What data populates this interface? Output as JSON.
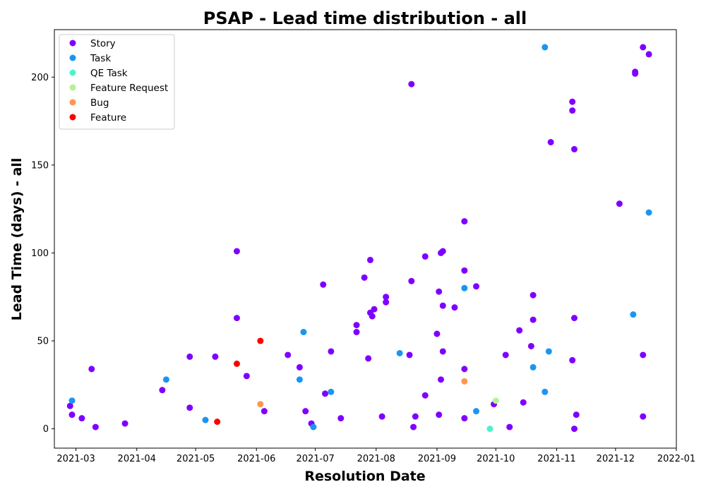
{
  "chart_data": {
    "type": "scatter",
    "title": "PSAP - Lead time distribution - all",
    "xlabel": "Resolution Date",
    "ylabel": "Lead Time (days) - all",
    "x_ticks": [
      "2021-03",
      "2021-04",
      "2021-05",
      "2021-06",
      "2021-07",
      "2021-08",
      "2021-09",
      "2021-10",
      "2021-11",
      "2021-12",
      "2022-01"
    ],
    "y_ticks": [
      0,
      50,
      100,
      150,
      200
    ],
    "xlim": [
      "2021-02-18",
      "2022-01-01"
    ],
    "ylim": [
      -11,
      227
    ],
    "grid": false,
    "legend_position": "top-left",
    "series": [
      {
        "name": "Story",
        "color": "#7f00ff",
        "points": [
          {
            "x": "2021-02-26",
            "y": 13
          },
          {
            "x": "2021-02-27",
            "y": 8
          },
          {
            "x": "2021-03-04",
            "y": 6
          },
          {
            "x": "2021-03-09",
            "y": 34
          },
          {
            "x": "2021-03-11",
            "y": 1
          },
          {
            "x": "2021-03-26",
            "y": 3
          },
          {
            "x": "2021-04-14",
            "y": 22
          },
          {
            "x": "2021-04-28",
            "y": 12
          },
          {
            "x": "2021-04-28",
            "y": 41
          },
          {
            "x": "2021-05-11",
            "y": 41
          },
          {
            "x": "2021-05-22",
            "y": 101
          },
          {
            "x": "2021-05-22",
            "y": 63
          },
          {
            "x": "2021-05-27",
            "y": 30
          },
          {
            "x": "2021-06-05",
            "y": 10
          },
          {
            "x": "2021-06-17",
            "y": 42
          },
          {
            "x": "2021-06-23",
            "y": 35
          },
          {
            "x": "2021-06-26",
            "y": 10
          },
          {
            "x": "2021-06-29",
            "y": 3
          },
          {
            "x": "2021-07-05",
            "y": 82
          },
          {
            "x": "2021-07-06",
            "y": 20
          },
          {
            "x": "2021-07-09",
            "y": 44
          },
          {
            "x": "2021-07-14",
            "y": 6
          },
          {
            "x": "2021-07-22",
            "y": 59
          },
          {
            "x": "2021-07-22",
            "y": 55
          },
          {
            "x": "2021-07-26",
            "y": 86
          },
          {
            "x": "2021-07-28",
            "y": 40
          },
          {
            "x": "2021-07-29",
            "y": 96
          },
          {
            "x": "2021-07-29",
            "y": 66
          },
          {
            "x": "2021-07-30",
            "y": 64
          },
          {
            "x": "2021-07-31",
            "y": 68
          },
          {
            "x": "2021-08-04",
            "y": 7
          },
          {
            "x": "2021-08-06",
            "y": 75
          },
          {
            "x": "2021-08-06",
            "y": 72
          },
          {
            "x": "2021-08-18",
            "y": 42
          },
          {
            "x": "2021-08-19",
            "y": 196
          },
          {
            "x": "2021-08-19",
            "y": 84
          },
          {
            "x": "2021-08-20",
            "y": 1
          },
          {
            "x": "2021-08-21",
            "y": 7
          },
          {
            "x": "2021-08-26",
            "y": 98
          },
          {
            "x": "2021-08-26",
            "y": 19
          },
          {
            "x": "2021-09-01",
            "y": 54
          },
          {
            "x": "2021-09-02",
            "y": 78
          },
          {
            "x": "2021-09-02",
            "y": 8
          },
          {
            "x": "2021-09-03",
            "y": 100
          },
          {
            "x": "2021-09-04",
            "y": 101
          },
          {
            "x": "2021-09-03",
            "y": 28
          },
          {
            "x": "2021-09-04",
            "y": 70
          },
          {
            "x": "2021-09-04",
            "y": 44
          },
          {
            "x": "2021-09-10",
            "y": 69
          },
          {
            "x": "2021-09-15",
            "y": 118
          },
          {
            "x": "2021-09-15",
            "y": 90
          },
          {
            "x": "2021-09-15",
            "y": 34
          },
          {
            "x": "2021-09-15",
            "y": 6
          },
          {
            "x": "2021-09-21",
            "y": 81
          },
          {
            "x": "2021-09-30",
            "y": 14
          },
          {
            "x": "2021-10-06",
            "y": 42
          },
          {
            "x": "2021-10-08",
            "y": 1
          },
          {
            "x": "2021-10-13",
            "y": 56
          },
          {
            "x": "2021-10-15",
            "y": 15
          },
          {
            "x": "2021-10-19",
            "y": 47
          },
          {
            "x": "2021-10-20",
            "y": 76
          },
          {
            "x": "2021-10-20",
            "y": 62
          },
          {
            "x": "2021-10-29",
            "y": 163
          },
          {
            "x": "2021-11-09",
            "y": 39
          },
          {
            "x": "2021-11-09",
            "y": 186
          },
          {
            "x": "2021-11-09",
            "y": 181
          },
          {
            "x": "2021-11-10",
            "y": 159
          },
          {
            "x": "2021-11-10",
            "y": 63
          },
          {
            "x": "2021-11-11",
            "y": 8
          },
          {
            "x": "2021-11-10",
            "y": 0
          },
          {
            "x": "2021-12-03",
            "y": 128
          },
          {
            "x": "2021-12-11",
            "y": 203
          },
          {
            "x": "2021-12-11",
            "y": 202
          },
          {
            "x": "2021-12-15",
            "y": 217
          },
          {
            "x": "2021-12-15",
            "y": 42
          },
          {
            "x": "2021-12-15",
            "y": 7
          },
          {
            "x": "2021-12-18",
            "y": 213
          }
        ]
      },
      {
        "name": "Task",
        "color": "#1996f3",
        "points": [
          {
            "x": "2021-02-27",
            "y": 16
          },
          {
            "x": "2021-04-16",
            "y": 28
          },
          {
            "x": "2021-05-06",
            "y": 5
          },
          {
            "x": "2021-06-23",
            "y": 28
          },
          {
            "x": "2021-06-25",
            "y": 55
          },
          {
            "x": "2021-06-30",
            "y": 1
          },
          {
            "x": "2021-07-09",
            "y": 21
          },
          {
            "x": "2021-08-13",
            "y": 43
          },
          {
            "x": "2021-09-15",
            "y": 80
          },
          {
            "x": "2021-09-21",
            "y": 10
          },
          {
            "x": "2021-10-20",
            "y": 35
          },
          {
            "x": "2021-10-26",
            "y": 217
          },
          {
            "x": "2021-10-26",
            "y": 21
          },
          {
            "x": "2021-10-28",
            "y": 44
          },
          {
            "x": "2021-12-10",
            "y": 65
          },
          {
            "x": "2021-12-18",
            "y": 123
          }
        ]
      },
      {
        "name": "QE Task",
        "color": "#4cf2ce",
        "points": [
          {
            "x": "2021-09-28",
            "y": 0
          }
        ]
      },
      {
        "name": "Feature Request",
        "color": "#b3f396",
        "points": [
          {
            "x": "2021-10-01",
            "y": 16
          }
        ]
      },
      {
        "name": "Bug",
        "color": "#ff964f",
        "points": [
          {
            "x": "2021-06-03",
            "y": 14
          },
          {
            "x": "2021-09-15",
            "y": 27
          }
        ]
      },
      {
        "name": "Feature",
        "color": "#ff0000",
        "points": [
          {
            "x": "2021-05-22",
            "y": 37
          },
          {
            "x": "2021-06-03",
            "y": 50
          },
          {
            "x": "2021-05-12",
            "y": 4
          }
        ]
      }
    ]
  }
}
